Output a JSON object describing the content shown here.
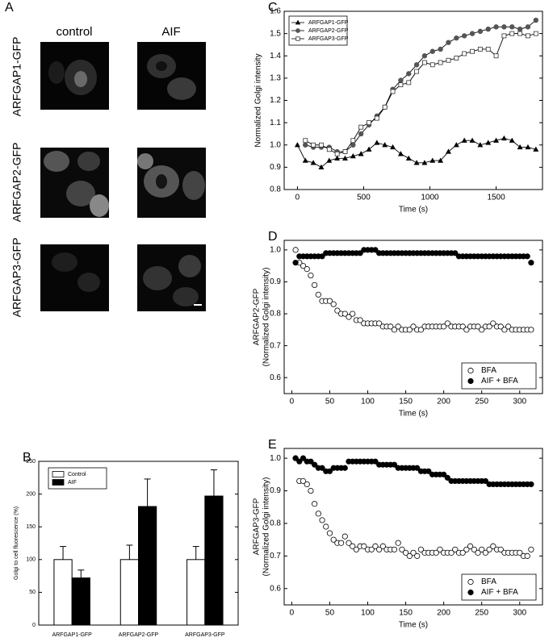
{
  "panel_a": {
    "panel": "A",
    "columns": [
      "control",
      "AIF"
    ],
    "rows": [
      "ARFGAP1-GFP",
      "ARFGAP2-GFP",
      "ARFGAP3-GFP"
    ]
  },
  "chart_data": [
    {
      "type": "bar",
      "panel": "B",
      "ylabel": "Golgi to cell fluorescence (%)",
      "categories": [
        "ARFGAP1-GFP",
        "ARFGAP2-GFP",
        "ARFGAP3-GFP"
      ],
      "series": [
        {
          "name": "Control",
          "color": "#ffffff",
          "values": [
            100,
            100,
            100
          ],
          "errors": [
            20,
            22,
            20
          ]
        },
        {
          "name": "AIF",
          "color": "#000000",
          "values": [
            72,
            181,
            197
          ],
          "errors": [
            12,
            42,
            40
          ]
        }
      ],
      "ylim": [
        0,
        250
      ],
      "yticks": [
        0,
        50,
        100,
        150,
        200,
        250
      ],
      "legend": "upper left"
    },
    {
      "type": "line",
      "panel": "C",
      "xlabel": "Time (s)",
      "ylabel": "Normalized Golgi intensity",
      "x": [
        0,
        60,
        120,
        180,
        240,
        300,
        360,
        420,
        480,
        540,
        600,
        660,
        720,
        780,
        840,
        900,
        960,
        1020,
        1080,
        1140,
        1200,
        1260,
        1320,
        1380,
        1440,
        1500,
        1560,
        1620,
        1680,
        1740,
        1800
      ],
      "series": [
        {
          "name": "ARFGAP1-GFP",
          "color": "#000000",
          "marker": "triangle",
          "filled": true,
          "values": [
            1.0,
            0.93,
            0.92,
            0.9,
            0.93,
            0.94,
            0.94,
            0.95,
            0.96,
            0.98,
            1.01,
            1.0,
            0.99,
            0.96,
            0.94,
            0.92,
            0.92,
            0.93,
            0.93,
            0.97,
            1.0,
            1.02,
            1.02,
            1.0,
            1.01,
            1.02,
            1.03,
            1.02,
            0.99,
            0.99,
            0.98
          ]
        },
        {
          "name": "ARFGAP2-GFP",
          "color": "#555555",
          "marker": "circle",
          "filled": true,
          "values": [
            null,
            1.0,
            0.99,
            0.99,
            0.99,
            0.97,
            0.97,
            1.0,
            1.05,
            1.09,
            1.13,
            1.17,
            1.25,
            1.29,
            1.32,
            1.36,
            1.4,
            1.42,
            1.43,
            1.46,
            1.48,
            1.49,
            1.5,
            1.51,
            1.52,
            1.53,
            1.53,
            1.53,
            1.52,
            1.53,
            1.56
          ]
        },
        {
          "name": "ARFGAP3-GFP",
          "color": "#333333",
          "marker": "square",
          "filled": false,
          "values": [
            null,
            1.02,
            1.0,
            1.0,
            0.98,
            0.96,
            0.97,
            1.02,
            1.08,
            1.1,
            1.12,
            1.17,
            1.24,
            1.27,
            1.28,
            1.33,
            1.37,
            1.36,
            1.37,
            1.38,
            1.39,
            1.41,
            1.42,
            1.43,
            1.43,
            1.4,
            1.49,
            1.5,
            1.5,
            1.49,
            1.5
          ]
        }
      ],
      "xlim": [
        -100,
        1850
      ],
      "xticks": [
        0,
        500,
        1000,
        1500
      ],
      "ylim": [
        0.8,
        1.6
      ],
      "yticks": [
        0.8,
        0.9,
        {
          "value": 1,
          "label": "1.0"
        },
        1.1,
        1.2,
        1.3,
        1.4,
        1.5,
        1.6
      ],
      "legend": "upper left"
    },
    {
      "type": "scatter",
      "panel": "D",
      "xlabel": "Time (s)",
      "ylabel": [
        "ARFGAP2-GFP",
        "(Normalized Golgi intensity)"
      ],
      "x": [
        5,
        10,
        15,
        20,
        25,
        30,
        35,
        40,
        45,
        50,
        55,
        60,
        65,
        70,
        75,
        80,
        85,
        90,
        95,
        100,
        105,
        110,
        115,
        120,
        125,
        130,
        135,
        140,
        145,
        150,
        155,
        160,
        165,
        170,
        175,
        180,
        185,
        190,
        195,
        200,
        205,
        210,
        215,
        220,
        225,
        230,
        235,
        240,
        245,
        250,
        255,
        260,
        265,
        270,
        275,
        280,
        285,
        290,
        295,
        300,
        305,
        310,
        315
      ],
      "series": [
        {
          "name": "BFA",
          "color": "#000000",
          "marker": "circle",
          "filled": false,
          "values": [
            1.0,
            0.96,
            0.95,
            0.94,
            0.92,
            0.89,
            0.86,
            0.84,
            0.84,
            0.84,
            0.83,
            0.81,
            0.8,
            0.8,
            0.79,
            0.8,
            0.78,
            0.78,
            0.77,
            0.77,
            0.77,
            0.77,
            0.77,
            0.76,
            0.76,
            0.76,
            0.75,
            0.76,
            0.75,
            0.75,
            0.75,
            0.76,
            0.75,
            0.75,
            0.76,
            0.76,
            0.76,
            0.76,
            0.76,
            0.76,
            0.77,
            0.76,
            0.76,
            0.76,
            0.76,
            0.75,
            0.76,
            0.76,
            0.76,
            0.75,
            0.76,
            0.76,
            0.77,
            0.76,
            0.76,
            0.75,
            0.76,
            0.75,
            0.75,
            0.75,
            0.75,
            0.75,
            0.75
          ]
        },
        {
          "name": "AIF + BFA",
          "color": "#000000",
          "marker": "circle",
          "filled": true,
          "values": [
            0.96,
            0.98,
            0.98,
            0.98,
            0.98,
            0.98,
            0.98,
            0.98,
            0.99,
            0.99,
            0.99,
            0.99,
            0.99,
            0.99,
            0.99,
            0.99,
            0.99,
            0.99,
            1.0,
            1.0,
            1.0,
            1.0,
            0.99,
            0.99,
            0.99,
            0.99,
            0.99,
            0.99,
            0.99,
            0.99,
            0.99,
            0.99,
            0.99,
            0.99,
            0.99,
            0.99,
            0.99,
            0.99,
            0.99,
            0.99,
            0.99,
            0.99,
            0.99,
            0.98,
            0.98,
            0.98,
            0.98,
            0.98,
            0.98,
            0.98,
            0.98,
            0.98,
            0.98,
            0.98,
            0.98,
            0.98,
            0.98,
            0.98,
            0.98,
            0.98,
            0.98,
            0.98,
            0.96
          ]
        }
      ],
      "xlim": [
        -10,
        330
      ],
      "xticks": [
        0,
        50,
        100,
        150,
        200,
        250,
        300
      ],
      "ylim": [
        0.55,
        1.03
      ],
      "yticks": [
        0.6,
        0.7,
        0.8,
        0.9,
        {
          "value": 1,
          "label": "1.0"
        }
      ],
      "legend": "lower right"
    },
    {
      "type": "scatter",
      "panel": "E",
      "xlabel": "Time (s)",
      "ylabel": [
        "ARFGAP3-GFP",
        "(Normalized Golgi intensity)"
      ],
      "x": [
        5,
        10,
        15,
        20,
        25,
        30,
        35,
        40,
        45,
        50,
        55,
        60,
        65,
        70,
        75,
        80,
        85,
        90,
        95,
        100,
        105,
        110,
        115,
        120,
        125,
        130,
        135,
        140,
        145,
        150,
        155,
        160,
        165,
        170,
        175,
        180,
        185,
        190,
        195,
        200,
        205,
        210,
        215,
        220,
        225,
        230,
        235,
        240,
        245,
        250,
        255,
        260,
        265,
        270,
        275,
        280,
        285,
        290,
        295,
        300,
        305,
        310,
        315
      ],
      "series": [
        {
          "name": "BFA",
          "color": "#000000",
          "marker": "circle",
          "filled": false,
          "values": [
            1.0,
            0.93,
            0.93,
            0.92,
            0.9,
            0.86,
            0.83,
            0.81,
            0.79,
            0.77,
            0.75,
            0.74,
            0.74,
            0.76,
            0.74,
            0.73,
            0.72,
            0.73,
            0.73,
            0.72,
            0.72,
            0.73,
            0.72,
            0.73,
            0.72,
            0.72,
            0.72,
            0.74,
            0.72,
            0.71,
            0.7,
            0.71,
            0.7,
            0.72,
            0.71,
            0.71,
            0.71,
            0.71,
            0.72,
            0.71,
            0.71,
            0.71,
            0.72,
            0.71,
            0.71,
            0.72,
            0.73,
            0.72,
            0.71,
            0.72,
            0.71,
            0.72,
            0.73,
            0.72,
            0.72,
            0.71,
            0.71,
            0.71,
            0.71,
            0.71,
            0.7,
            0.7,
            0.72
          ]
        },
        {
          "name": "AIF + BFA",
          "color": "#000000",
          "marker": "circle",
          "filled": true,
          "values": [
            1.0,
            0.99,
            1.0,
            0.99,
            0.99,
            0.98,
            0.97,
            0.97,
            0.96,
            0.96,
            0.97,
            0.97,
            0.97,
            0.97,
            0.99,
            0.99,
            0.99,
            0.99,
            0.99,
            0.99,
            0.99,
            0.99,
            0.98,
            0.98,
            0.98,
            0.98,
            0.98,
            0.97,
            0.97,
            0.97,
            0.97,
            0.97,
            0.97,
            0.96,
            0.96,
            0.96,
            0.95,
            0.95,
            0.95,
            0.95,
            0.94,
            0.93,
            0.93,
            0.93,
            0.93,
            0.93,
            0.93,
            0.93,
            0.93,
            0.93,
            0.93,
            0.92,
            0.92,
            0.92,
            0.92,
            0.92,
            0.92,
            0.92,
            0.92,
            0.92,
            0.92,
            0.92,
            0.92
          ]
        }
      ],
      "xlim": [
        -10,
        330
      ],
      "xticks": [
        0,
        50,
        100,
        150,
        200,
        250,
        300
      ],
      "ylim": [
        0.55,
        1.03
      ],
      "yticks": [
        0.6,
        0.7,
        0.8,
        0.9,
        {
          "value": 1,
          "label": "1.0"
        }
      ],
      "legend": "lower right"
    }
  ]
}
